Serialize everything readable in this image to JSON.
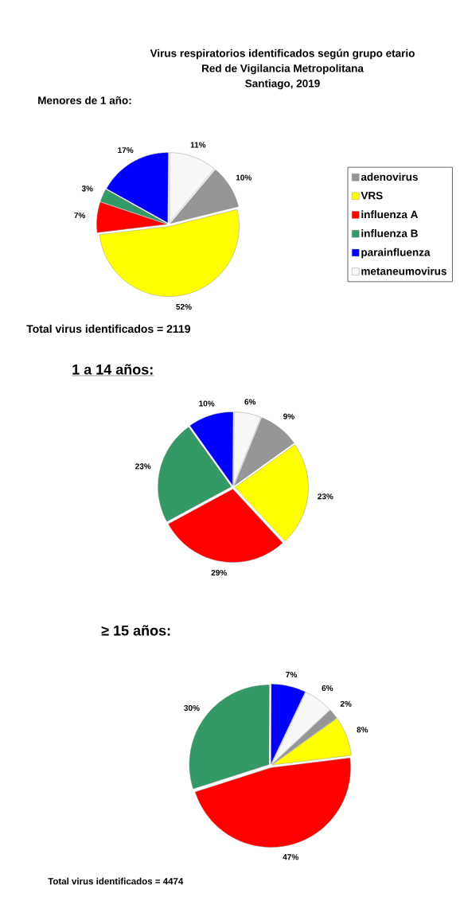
{
  "chart_data": [
    {
      "type": "pie",
      "title": "Virus respiratorios identificados según grupo etario",
      "subtitle": "Red de Vigilancia Metropolitana",
      "annotations": [
        "Santiago, 2019",
        "Menores de 1 año:",
        "Total virus identificados = 2119"
      ],
      "categories": [
        "adenovirus",
        "VRS",
        "influenza A",
        "influenza B",
        "parainfluenza",
        "metaneumovirus"
      ],
      "values": [
        10,
        52,
        7,
        3,
        17,
        11
      ],
      "colors": [
        "#969696",
        "#ffff00",
        "#ff0000",
        "#339966",
        "#0000ff",
        "#f7f7f7"
      ],
      "value_labels": [
        "10%",
        "52%",
        "7%",
        "3%",
        "17%",
        "11%"
      ],
      "legend": "right"
    },
    {
      "type": "pie",
      "title": "1 a 14 años:",
      "categories": [
        null,
        null,
        null,
        null,
        null,
        null
      ],
      "values": [
        9,
        23,
        29,
        23,
        10,
        6
      ],
      "colors": [
        "#969696",
        "#ffff00",
        "#ff0000",
        "#339966",
        "#0000ff",
        "#f7f7f7"
      ],
      "value_labels": [
        "9%",
        "23%",
        "29%",
        "23%",
        "10%",
        "6%"
      ]
    },
    {
      "type": "pie",
      "title": "≥ 15 años:",
      "annotations": [
        "Total virus identificados = 4474"
      ],
      "categories": [
        null,
        null,
        null,
        null,
        null,
        null
      ],
      "values": [
        2,
        8,
        47,
        30,
        7,
        6
      ],
      "colors": [
        "#969696",
        "#ffff00",
        "#ff0000",
        "#339966",
        "#0000ff",
        "#f7f7f7"
      ],
      "value_labels": [
        "2%",
        "8%",
        "47%",
        "30%",
        "7%",
        "6%"
      ]
    }
  ]
}
